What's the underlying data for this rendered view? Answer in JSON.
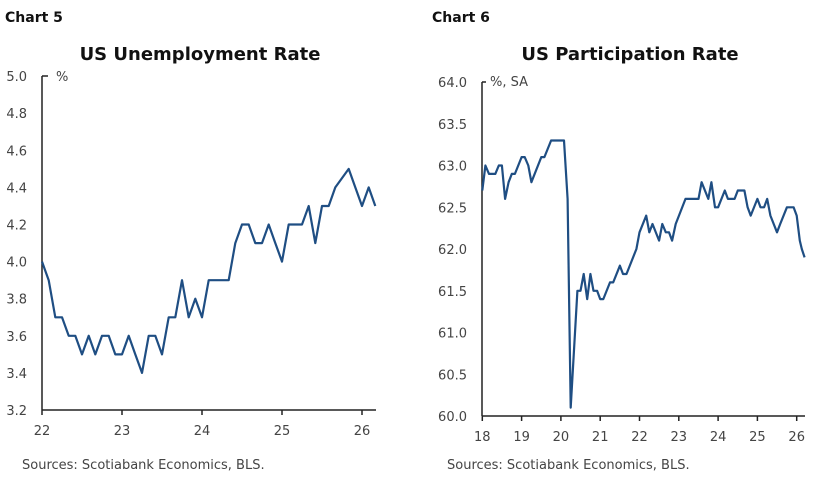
{
  "chart_data": [
    {
      "type": "line",
      "chart_number": "Chart 5",
      "title": "US Unemployment Rate",
      "ylabel": "%",
      "source": "Sources: Scotiabank Economics, BLS.",
      "xlim": [
        22,
        26.17
      ],
      "ylim": [
        3.2,
        5.0
      ],
      "x_ticks": [
        "22",
        "23",
        "24",
        "25",
        "26"
      ],
      "y_ticks": [
        "3.2",
        "3.4",
        "3.6",
        "3.8",
        "4.0",
        "4.2",
        "4.4",
        "4.6",
        "4.8",
        "5.0"
      ],
      "grid": false,
      "line_color": "#1f4e83",
      "series": [
        {
          "start": 22,
          "frequency": "monthly",
          "values": [
            4.0,
            3.9,
            3.7,
            3.7,
            3.6,
            3.6,
            3.5,
            3.6,
            3.5,
            3.6,
            3.6,
            3.5,
            3.5,
            3.6,
            3.5,
            3.4,
            3.6,
            3.6,
            3.5,
            3.7,
            3.7,
            3.9,
            3.7,
            3.8,
            3.7,
            3.9,
            3.9,
            3.9,
            3.9,
            4.1,
            4.2,
            4.2,
            4.1,
            4.1,
            4.2,
            4.1,
            4.0,
            4.2,
            4.2,
            4.2,
            4.3,
            4.1,
            4.3,
            4.3,
            4.4,
            4.45,
            4.5,
            4.4,
            4.3,
            4.4,
            4.3
          ]
        }
      ]
    },
    {
      "type": "line",
      "chart_number": "Chart 6",
      "title": "US Participation Rate",
      "ylabel": "%, SA",
      "source": "Sources: Scotiabank Economics, BLS.",
      "xlim": [
        18,
        26.2
      ],
      "ylim": [
        60.0,
        64.0
      ],
      "x_ticks": [
        "18",
        "19",
        "20",
        "21",
        "22",
        "23",
        "24",
        "25",
        "26"
      ],
      "y_ticks": [
        "60.0",
        "60.5",
        "61.0",
        "61.5",
        "62.0",
        "62.5",
        "63.0",
        "63.5",
        "64.0"
      ],
      "grid": false,
      "line_color": "#1f4e83",
      "series": [
        {
          "points": [
            [
              18.0,
              62.7
            ],
            [
              18.08,
              63.0
            ],
            [
              18.17,
              62.9
            ],
            [
              18.33,
              62.9
            ],
            [
              18.42,
              63.0
            ],
            [
              18.5,
              63.0
            ],
            [
              18.58,
              62.6
            ],
            [
              18.67,
              62.8
            ],
            [
              18.75,
              62.9
            ],
            [
              18.83,
              62.9
            ],
            [
              19.0,
              63.1
            ],
            [
              19.08,
              63.1
            ],
            [
              19.17,
              63.0
            ],
            [
              19.25,
              62.8
            ],
            [
              19.5,
              63.1
            ],
            [
              19.58,
              63.1
            ],
            [
              19.75,
              63.3
            ],
            [
              20.08,
              63.3
            ],
            [
              20.17,
              62.6
            ],
            [
              20.25,
              60.1
            ],
            [
              20.42,
              61.5
            ],
            [
              20.5,
              61.5
            ],
            [
              20.58,
              61.7
            ],
            [
              20.67,
              61.4
            ],
            [
              20.75,
              61.7
            ],
            [
              20.83,
              61.5
            ],
            [
              20.92,
              61.5
            ],
            [
              21.0,
              61.4
            ],
            [
              21.08,
              61.4
            ],
            [
              21.25,
              61.6
            ],
            [
              21.33,
              61.6
            ],
            [
              21.5,
              61.8
            ],
            [
              21.58,
              61.7
            ],
            [
              21.67,
              61.7
            ],
            [
              21.92,
              62.0
            ],
            [
              22.0,
              62.2
            ],
            [
              22.17,
              62.4
            ],
            [
              22.25,
              62.2
            ],
            [
              22.33,
              62.3
            ],
            [
              22.5,
              62.1
            ],
            [
              22.58,
              62.3
            ],
            [
              22.67,
              62.2
            ],
            [
              22.75,
              62.2
            ],
            [
              22.83,
              62.1
            ],
            [
              22.92,
              62.3
            ],
            [
              23.17,
              62.6
            ],
            [
              23.5,
              62.6
            ],
            [
              23.58,
              62.8
            ],
            [
              23.75,
              62.6
            ],
            [
              23.83,
              62.8
            ],
            [
              23.92,
              62.5
            ],
            [
              24.0,
              62.5
            ],
            [
              24.17,
              62.7
            ],
            [
              24.25,
              62.6
            ],
            [
              24.42,
              62.6
            ],
            [
              24.5,
              62.7
            ],
            [
              24.67,
              62.7
            ],
            [
              24.75,
              62.5
            ],
            [
              24.83,
              62.4
            ],
            [
              25.0,
              62.6
            ],
            [
              25.08,
              62.5
            ],
            [
              25.17,
              62.5
            ],
            [
              25.25,
              62.6
            ],
            [
              25.33,
              62.4
            ],
            [
              25.5,
              62.2
            ],
            [
              25.58,
              62.3
            ],
            [
              25.75,
              62.5
            ],
            [
              25.92,
              62.5
            ],
            [
              26.0,
              62.4
            ],
            [
              26.08,
              62.1
            ],
            [
              26.13,
              62.0
            ],
            [
              26.2,
              61.9
            ]
          ]
        }
      ]
    }
  ]
}
